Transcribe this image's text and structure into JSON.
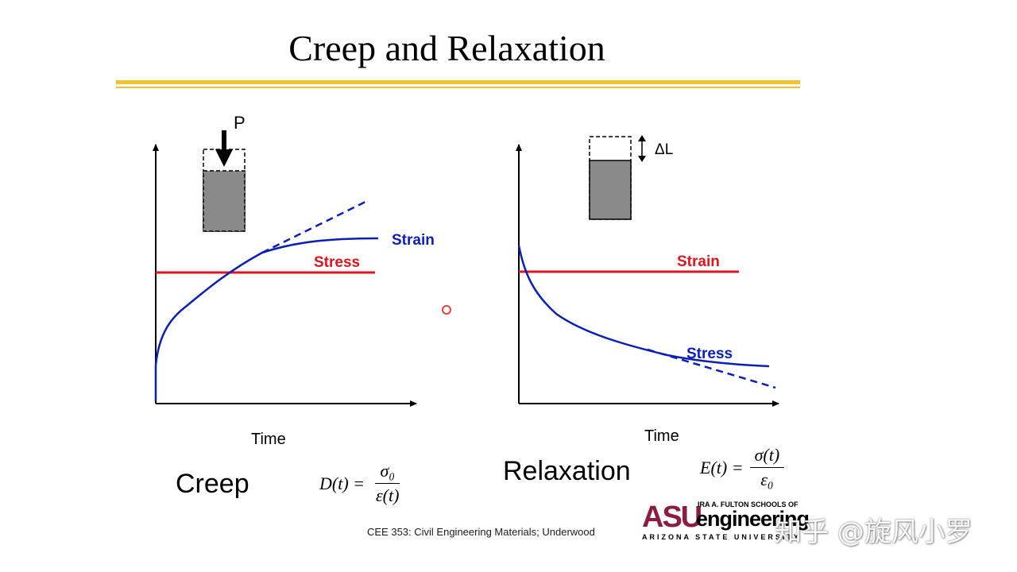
{
  "slide": {
    "title": "Creep and Relaxation",
    "footer": "CEE 353: Civil Engineering Materials; Underwood",
    "colors": {
      "accent_gold": "#f2c12e",
      "strain_blue": "#0a1fb8",
      "stress_red": "#e0141e",
      "asu_maroon": "#8c1d40"
    }
  },
  "creep": {
    "load_label": "P",
    "strain_label": "Strain",
    "stress_label": "Stress",
    "x_label": "Time",
    "caption": "Creep",
    "formula": {
      "lhs": "D(t) =",
      "num": "σ₀",
      "den": "ε(t)"
    }
  },
  "relaxation": {
    "delta_label": "ΔL",
    "strain_label": "Strain",
    "stress_label": "Stress",
    "x_label": "Time",
    "caption": "Relaxation",
    "formula": {
      "lhs": "E(t) =",
      "num": "σ(t)",
      "den": "ε₀"
    }
  },
  "logo": {
    "asu": "ASU",
    "fulton": "IRA A. FULTON SCHOOLS OF",
    "engineering": "engineering",
    "state": "ARIZONA STATE UNIVERSITY"
  },
  "watermark": "知乎 @旋风小罗"
}
